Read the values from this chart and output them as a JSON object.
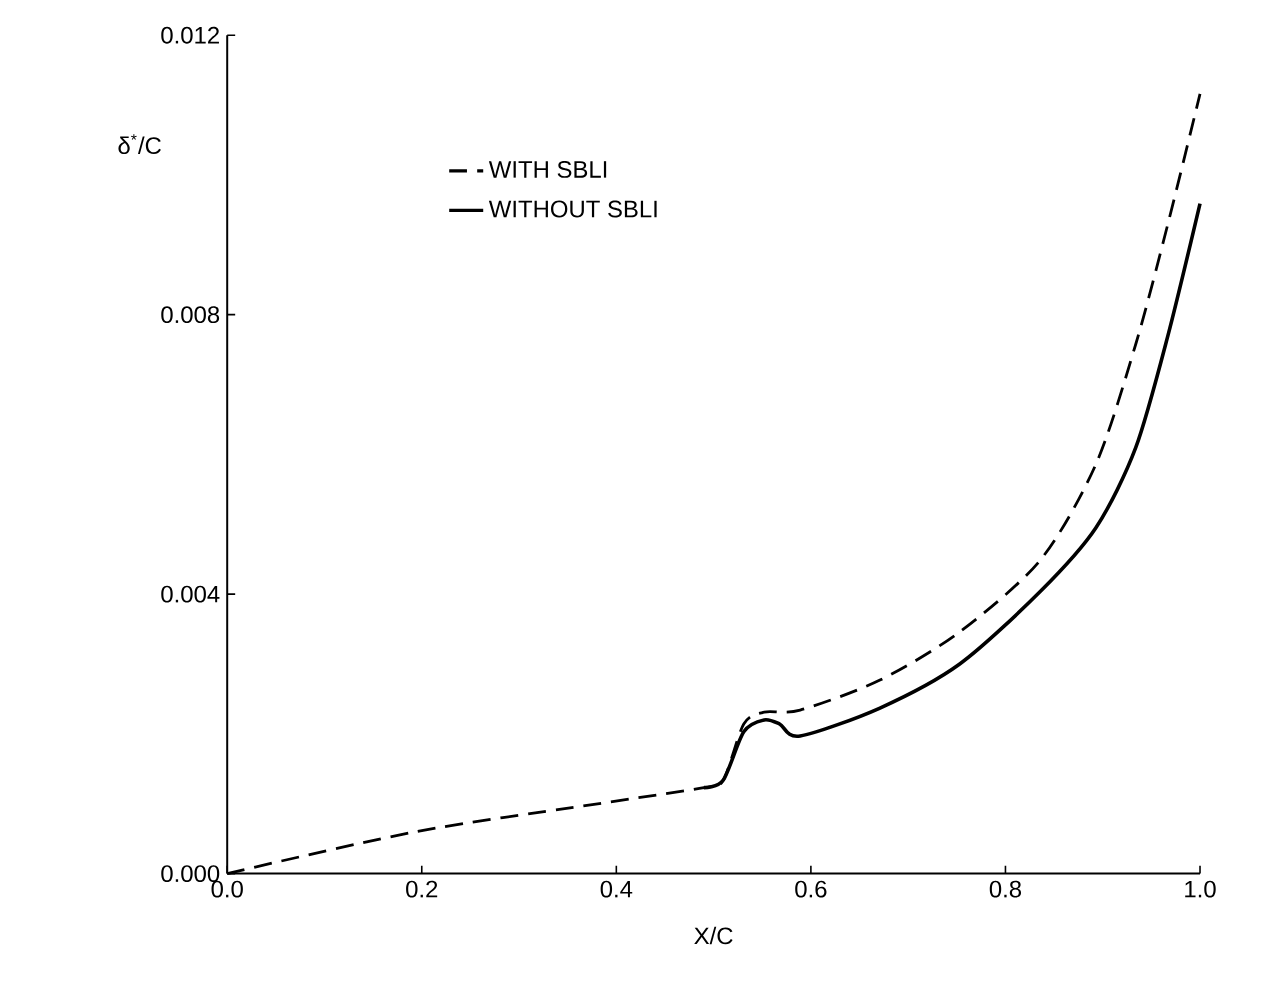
{
  "chart_data": {
    "type": "line",
    "xlabel": "X/C",
    "ylabel": "δ$^{*}$/C",
    "legend": "top left",
    "xlim": [
      0,
      1.0
    ],
    "ylim": [
      0,
      0.012
    ],
    "xticks": [
      {
        "value": 0,
        "label": "0.0"
      },
      0.2,
      0.4,
      0.6,
      0.8,
      {
        "value": 1.0,
        "label": "1.0"
      }
    ],
    "yticks": [
      {
        "value": 0,
        "label": "0.000"
      },
      0.004,
      0.008,
      0.012
    ],
    "series": [
      {
        "name": "WITH SBLI",
        "color": "#000000",
        "line_style": "dashed",
        "x": [
          0,
          0.194,
          0.391,
          0.49,
          0.51,
          0.531,
          0.552,
          0.589,
          0.671,
          0.753,
          0.836,
          0.893,
          0.934,
          0.967,
          1.0
        ],
        "values": [
          0,
          0.0006,
          0.00102,
          0.00123,
          0.00134,
          0.00214,
          0.00231,
          0.00234,
          0.00277,
          0.00346,
          0.00449,
          0.00586,
          0.00758,
          0.0093,
          0.01116
        ]
      },
      {
        "name": "WITHOUT SBLI",
        "color": "#000000",
        "line_style": "solid",
        "x": [
          0.49,
          0.51,
          0.531,
          0.552,
          0.568,
          0.589,
          0.671,
          0.753,
          0.836,
          0.893,
          0.934,
          0.967,
          1.0
        ],
        "values": [
          0.00123,
          0.00134,
          0.00203,
          0.0022,
          0.00214,
          0.00197,
          0.00237,
          0.003,
          0.00404,
          0.00495,
          0.0061,
          0.0077,
          0.00959
        ]
      }
    ]
  }
}
